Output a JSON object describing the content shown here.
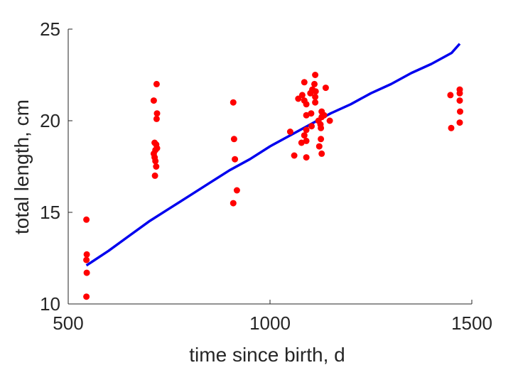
{
  "chart_data": {
    "type": "scatter",
    "xlabel": "time since birth, d",
    "ylabel": "total length, cm",
    "xlim": [
      500,
      1500
    ],
    "ylim": [
      10,
      25
    ],
    "x_ticks": [
      500,
      1000,
      1500
    ],
    "y_ticks": [
      10,
      15,
      20,
      25
    ],
    "x_tick_labels": [
      "500",
      "1000",
      "1500"
    ],
    "y_tick_labels": [
      "10",
      "15",
      "20",
      "25"
    ],
    "grid": false,
    "legend": "none",
    "series": [
      {
        "kind": "scatter",
        "color": "#ff0000",
        "points": [
          [
            545,
            14.6
          ],
          [
            546,
            12.7
          ],
          [
            545,
            12.4
          ],
          [
            546,
            11.7
          ],
          [
            545,
            10.4
          ],
          [
            719,
            22.0
          ],
          [
            712,
            21.1
          ],
          [
            720,
            20.4
          ],
          [
            719,
            20.1
          ],
          [
            714,
            18.8
          ],
          [
            718,
            18.7
          ],
          [
            720,
            18.5
          ],
          [
            716,
            18.4
          ],
          [
            712,
            18.2
          ],
          [
            714,
            18.0
          ],
          [
            716,
            17.8
          ],
          [
            718,
            17.5
          ],
          [
            715,
            17.0
          ],
          [
            909,
            21.0
          ],
          [
            911,
            19.0
          ],
          [
            913,
            17.9
          ],
          [
            918,
            16.2
          ],
          [
            909,
            15.5
          ],
          [
            1112,
            22.5
          ],
          [
            1085,
            22.1
          ],
          [
            1110,
            22.0
          ],
          [
            1105,
            21.7
          ],
          [
            1113,
            21.6
          ],
          [
            1138,
            21.8
          ],
          [
            1100,
            21.5
          ],
          [
            1080,
            21.4
          ],
          [
            1112,
            21.3
          ],
          [
            1070,
            21.2
          ],
          [
            1085,
            21.1
          ],
          [
            1112,
            21.0
          ],
          [
            1090,
            20.9
          ],
          [
            1128,
            20.5
          ],
          [
            1134,
            20.3
          ],
          [
            1090,
            20.3
          ],
          [
            1102,
            20.4
          ],
          [
            1128,
            20.2
          ],
          [
            1148,
            20.0
          ],
          [
            1120,
            20.0
          ],
          [
            1125,
            19.8
          ],
          [
            1103,
            19.7
          ],
          [
            1126,
            19.6
          ],
          [
            1090,
            19.5
          ],
          [
            1050,
            19.4
          ],
          [
            1085,
            19.2
          ],
          [
            1126,
            19.0
          ],
          [
            1090,
            18.9
          ],
          [
            1078,
            18.8
          ],
          [
            1122,
            18.6
          ],
          [
            1128,
            18.2
          ],
          [
            1060,
            18.1
          ],
          [
            1090,
            18.0
          ],
          [
            1470,
            21.7
          ],
          [
            1470,
            21.5
          ],
          [
            1447,
            21.4
          ],
          [
            1470,
            21.1
          ],
          [
            1471,
            20.5
          ],
          [
            1470,
            19.9
          ],
          [
            1449,
            19.6
          ]
        ]
      },
      {
        "kind": "line",
        "color": "#0000ee",
        "points": [
          [
            545,
            12.1
          ],
          [
            600,
            12.9
          ],
          [
            650,
            13.7
          ],
          [
            700,
            14.5
          ],
          [
            750,
            15.2
          ],
          [
            800,
            15.9
          ],
          [
            850,
            16.6
          ],
          [
            900,
            17.3
          ],
          [
            950,
            17.9
          ],
          [
            1000,
            18.6
          ],
          [
            1050,
            19.2
          ],
          [
            1100,
            19.8
          ],
          [
            1150,
            20.4
          ],
          [
            1200,
            20.9
          ],
          [
            1250,
            21.5
          ],
          [
            1300,
            22.0
          ],
          [
            1350,
            22.6
          ],
          [
            1400,
            23.1
          ],
          [
            1450,
            23.7
          ],
          [
            1470,
            24.2
          ]
        ]
      }
    ]
  }
}
